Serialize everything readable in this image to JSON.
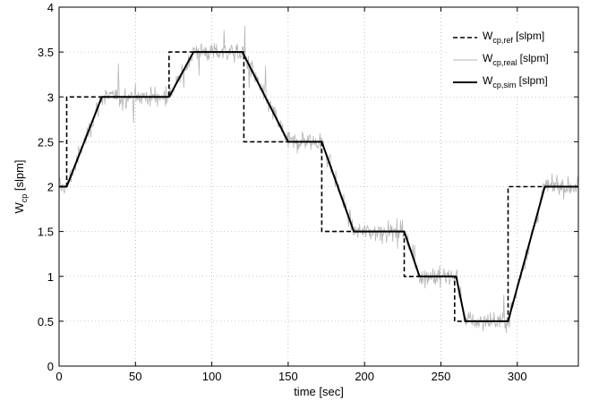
{
  "chart_data": {
    "type": "line",
    "xlabel": "time  [sec]",
    "ylabel_main": "W",
    "ylabel_sub": "cp",
    "ylabel_unit": "  [slpm]",
    "xlim": [
      0,
      340
    ],
    "ylim": [
      0,
      4
    ],
    "xticks": [
      "0",
      "50",
      "100",
      "150",
      "200",
      "250",
      "300"
    ],
    "yticks": [
      "0",
      "0.5",
      "1",
      "1.5",
      "2",
      "2.5",
      "3",
      "3.5",
      "4"
    ],
    "grid": true,
    "legend_position": "top-right",
    "colors": {
      "ref": "#000000",
      "real": "#b4b4b4",
      "sim": "#000000"
    },
    "series": [
      {
        "key": "ref",
        "legend_main": "W",
        "legend_sub": "cp,ref",
        "legend_unit": " [slpm]",
        "style": "dashed",
        "x": [
          0,
          5,
          5,
          72,
          72,
          86,
          86,
          121,
          121,
          149,
          149,
          172,
          172,
          193,
          193,
          226,
          226,
          233,
          233,
          259,
          259,
          266,
          266,
          294,
          294,
          340
        ],
        "y": [
          2,
          2,
          3,
          3,
          3.5,
          3.5,
          3.5,
          3.5,
          2.5,
          2.5,
          2.5,
          2.5,
          1.5,
          1.5,
          1.5,
          1.5,
          1,
          1,
          1,
          1,
          0.5,
          0.5,
          0.5,
          0.5,
          2,
          2
        ]
      },
      {
        "key": "real",
        "legend_main": "W",
        "legend_sub": "cp,real",
        "legend_unit": " [slpm]",
        "style": "noisy",
        "x": [
          0,
          5,
          28,
          72,
          88,
          120,
          150,
          172,
          193,
          226,
          236,
          260,
          266,
          294,
          318,
          340
        ],
        "y": [
          2,
          2,
          3,
          3,
          3.5,
          3.5,
          2.5,
          2.5,
          1.5,
          1.5,
          1,
          1,
          0.5,
          0.5,
          2,
          2
        ]
      },
      {
        "key": "sim",
        "legend_main": "W",
        "legend_sub": "cp,sim",
        "legend_unit": " [slpm]",
        "style": "solid",
        "x": [
          0,
          5,
          28,
          72,
          88,
          120,
          150,
          172,
          193,
          226,
          236,
          260,
          266,
          294,
          318,
          340
        ],
        "y": [
          2,
          2,
          3,
          3,
          3.5,
          3.5,
          2.5,
          2.5,
          1.5,
          1.5,
          1,
          1,
          0.5,
          0.5,
          2,
          2
        ]
      }
    ]
  }
}
